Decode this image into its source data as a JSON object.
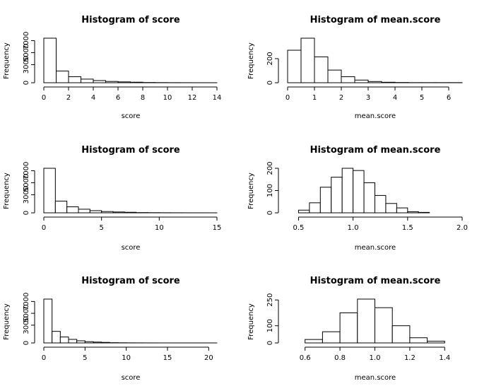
{
  "chart_data": [
    {
      "type": "bar",
      "title": "Histogram of score",
      "xlabel": "score",
      "ylabel": "Frequency",
      "bins": [
        [
          0,
          1
        ],
        [
          1,
          2
        ],
        [
          2,
          3
        ],
        [
          3,
          4
        ],
        [
          4,
          5
        ],
        [
          5,
          6
        ],
        [
          6,
          7
        ],
        [
          7,
          8
        ],
        [
          8,
          9
        ],
        [
          9,
          10
        ],
        [
          10,
          11
        ],
        [
          11,
          12
        ],
        [
          12,
          13
        ],
        [
          13,
          14
        ]
      ],
      "values": [
        7400,
        1950,
        1000,
        600,
        360,
        210,
        140,
        90,
        40,
        25,
        15,
        10,
        5,
        3
      ],
      "xticks": [
        0,
        2,
        4,
        6,
        8,
        10,
        12,
        14
      ],
      "yticks": [
        0,
        3000,
        5000,
        7000
      ],
      "xlim": [
        0,
        14
      ],
      "ylim": [
        0,
        7400
      ]
    },
    {
      "type": "bar",
      "title": "Histogram of mean.score",
      "xlabel": "mean.score",
      "ylabel": "Frequency",
      "bins": [
        [
          0,
          0.5
        ],
        [
          0.5,
          1
        ],
        [
          1,
          1.5
        ],
        [
          1.5,
          2
        ],
        [
          2,
          2.5
        ],
        [
          2.5,
          3
        ],
        [
          3,
          3.5
        ],
        [
          3.5,
          4
        ],
        [
          4,
          4.5
        ],
        [
          4.5,
          5
        ],
        [
          5,
          5.5
        ],
        [
          5.5,
          6
        ],
        [
          6,
          6.5
        ]
      ],
      "values": [
        270,
        370,
        215,
        105,
        50,
        22,
        10,
        4,
        2,
        1,
        1,
        1,
        1
      ],
      "xticks": [
        0,
        1,
        2,
        3,
        4,
        5,
        6
      ],
      "yticks": [
        0,
        200
      ],
      "xlim": [
        0,
        6.5
      ],
      "ylim": [
        0,
        370
      ]
    },
    {
      "type": "bar",
      "title": "Histogram of score",
      "xlabel": "score",
      "ylabel": "Frequency",
      "bins": [
        [
          0,
          1
        ],
        [
          1,
          2
        ],
        [
          2,
          3
        ],
        [
          3,
          4
        ],
        [
          4,
          5
        ],
        [
          5,
          6
        ],
        [
          6,
          7
        ],
        [
          7,
          8
        ],
        [
          8,
          9
        ],
        [
          9,
          10
        ],
        [
          10,
          11
        ],
        [
          11,
          12
        ],
        [
          12,
          13
        ],
        [
          13,
          14
        ],
        [
          14,
          15
        ]
      ],
      "values": [
        7400,
        1950,
        1000,
        600,
        360,
        210,
        140,
        90,
        40,
        25,
        15,
        10,
        5,
        3,
        2
      ],
      "xticks": [
        0,
        5,
        10,
        15
      ],
      "yticks": [
        0,
        3000,
        5000,
        7000
      ],
      "xlim": [
        0,
        15
      ],
      "ylim": [
        0,
        7400
      ]
    },
    {
      "type": "bar",
      "title": "Histogram of mean.score",
      "xlabel": "mean.score",
      "ylabel": "Frequency",
      "bins": [
        [
          0.5,
          0.6
        ],
        [
          0.6,
          0.7
        ],
        [
          0.7,
          0.8
        ],
        [
          0.8,
          0.9
        ],
        [
          0.9,
          1.0
        ],
        [
          1.0,
          1.1
        ],
        [
          1.1,
          1.2
        ],
        [
          1.2,
          1.3
        ],
        [
          1.3,
          1.4
        ],
        [
          1.4,
          1.5
        ],
        [
          1.5,
          1.6
        ],
        [
          1.6,
          1.7
        ]
      ],
      "values": [
        12,
        45,
        115,
        160,
        200,
        190,
        135,
        78,
        42,
        22,
        5,
        2
      ],
      "xticks": [
        0.5,
        1.0,
        1.5,
        2.0
      ],
      "xtick_labels": [
        "0.5",
        "1.0",
        "1.5",
        "2.0"
      ],
      "yticks": [
        0,
        100,
        200
      ],
      "xlim": [
        0.4,
        2.0
      ],
      "ylim": [
        0,
        200
      ]
    },
    {
      "type": "bar",
      "title": "Histogram of score",
      "xlabel": "score",
      "ylabel": "Frequency",
      "bins": [
        [
          0,
          1
        ],
        [
          1,
          2
        ],
        [
          2,
          3
        ],
        [
          3,
          4
        ],
        [
          4,
          5
        ],
        [
          5,
          6
        ],
        [
          6,
          7
        ],
        [
          7,
          8
        ],
        [
          8,
          9
        ],
        [
          9,
          10
        ],
        [
          10,
          11
        ],
        [
          11,
          12
        ],
        [
          12,
          13
        ],
        [
          13,
          14
        ],
        [
          14,
          15
        ],
        [
          15,
          16
        ],
        [
          16,
          17
        ],
        [
          17,
          18
        ],
        [
          18,
          19
        ],
        [
          19,
          20
        ],
        [
          20,
          21
        ]
      ],
      "values": [
        7400,
        1950,
        1000,
        600,
        360,
        210,
        140,
        90,
        40,
        25,
        15,
        10,
        5,
        3,
        2,
        1,
        1,
        1,
        1,
        1,
        1
      ],
      "xticks": [
        0,
        5,
        10,
        15,
        20
      ],
      "yticks": [
        0,
        3000,
        5000,
        7000
      ],
      "xlim": [
        0,
        21
      ],
      "ylim": [
        0,
        7400
      ]
    },
    {
      "type": "bar",
      "title": "Histogram of mean.score",
      "xlabel": "mean.score",
      "ylabel": "Frequency",
      "bins": [
        [
          0.6,
          0.7
        ],
        [
          0.7,
          0.8
        ],
        [
          0.8,
          0.9
        ],
        [
          0.9,
          1.0
        ],
        [
          1.0,
          1.1
        ],
        [
          1.1,
          1.2
        ],
        [
          1.2,
          1.3
        ],
        [
          1.3,
          1.4
        ]
      ],
      "values": [
        20,
        65,
        175,
        255,
        205,
        100,
        30,
        10
      ],
      "xticks": [
        0.6,
        0.8,
        1.0,
        1.2,
        1.4
      ],
      "xtick_labels": [
        "0.6",
        "0.8",
        "1.0",
        "1.2",
        "1.4"
      ],
      "yticks": [
        0,
        100,
        250
      ],
      "xlim": [
        0.5,
        1.5
      ],
      "ylim": [
        0,
        255
      ]
    }
  ]
}
